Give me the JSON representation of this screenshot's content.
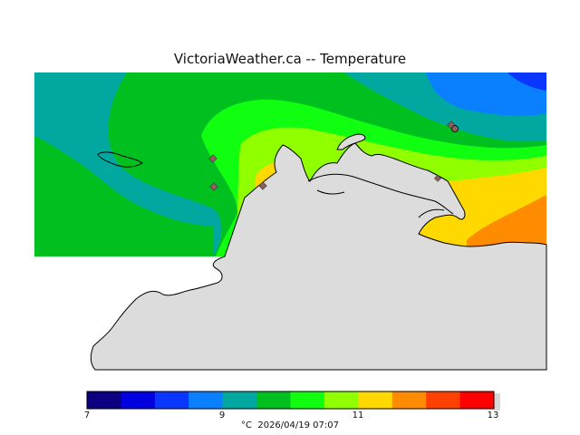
{
  "title": "VictoriaWeather.ca -- Temperature",
  "colorbar": {
    "min": 7,
    "max": 13,
    "colors": [
      "#0a0080",
      "#0000e0",
      "#0a36ff",
      "#0a80ff",
      "#00a8a0",
      "#00c020",
      "#10ff10",
      "#90ff00",
      "#ffd800",
      "#ff8c00",
      "#ff4000",
      "#ff0000"
    ],
    "tick_labels": [
      "7",
      "9",
      "11",
      "13"
    ]
  },
  "footer": {
    "unit": "°C",
    "timestamp": "2026/04/19 07:07"
  },
  "map_colors": {
    "teal": "#00a8a0",
    "green": "#00c020",
    "bright_green": "#10ff10",
    "lime": "#90ff00",
    "yellow": "#ffd800",
    "orange": "#ff8c00",
    "blue": "#0a80ff",
    "land": "#dcdcdc",
    "station": "#8c6060"
  }
}
